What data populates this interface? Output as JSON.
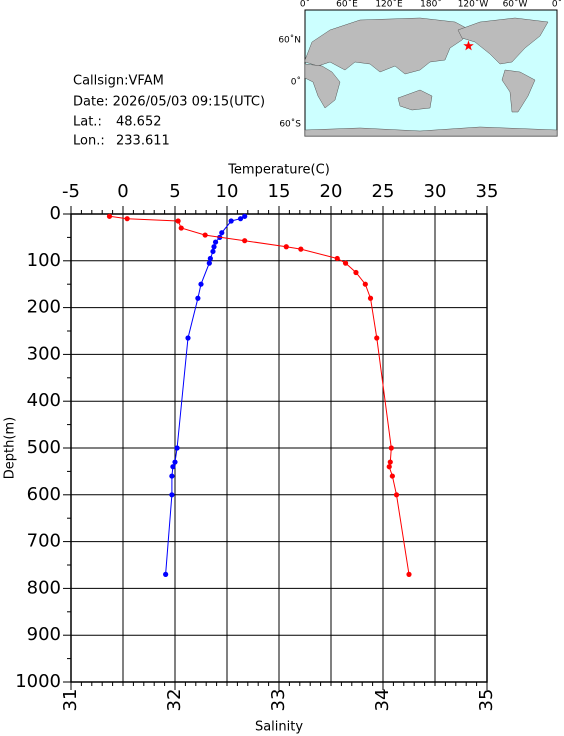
{
  "info": {
    "callsign": "Callsign:VFAM",
    "date": "Date:  2026/05/03 09:15(UTC)",
    "lat_label": "Lat.:",
    "lat": 48.652,
    "lon_label": "Lon.:",
    "lon": 233.611
  },
  "map": {
    "lon_labels": [
      "0˚",
      "60˚E",
      "120˚E",
      "180˚",
      "120˚W",
      "60˚W",
      "0˚"
    ],
    "lat_labels": [
      "60˚N",
      "0˚",
      "60˚S"
    ]
  },
  "chart_data": {
    "type": "profile",
    "xlabel": "Temperature(C)",
    "x2label": "Salinity",
    "ylabel": "Depth(m)",
    "xlim": [
      -5,
      35
    ],
    "xticks": [
      -5,
      0,
      5,
      10,
      15,
      20,
      25,
      30,
      35
    ],
    "x2lim": [
      31,
      35
    ],
    "x2ticks": [
      31,
      32,
      33,
      34,
      35
    ],
    "ylim": [
      0,
      1000
    ],
    "yticks": [
      0,
      100,
      200,
      300,
      400,
      500,
      600,
      700,
      800,
      900,
      1000
    ],
    "inverted_y": true,
    "grid": true,
    "series": [
      {
        "color": "#0000ff",
        "axis": "x",
        "depth": [
          5,
          10,
          15,
          40,
          50,
          60,
          70,
          80,
          95,
          105,
          150,
          180,
          265,
          500,
          530,
          540,
          560,
          600,
          770
        ],
        "values": [
          11.7,
          11.3,
          10.4,
          9.5,
          9.3,
          8.9,
          8.75,
          8.65,
          8.4,
          8.3,
          7.5,
          7.2,
          6.25,
          5.2,
          5.0,
          4.8,
          4.7,
          4.7,
          4.1
        ]
      },
      {
        "color": "#ff0000",
        "axis": "x2",
        "depth": [
          5,
          10,
          15,
          30,
          45,
          57,
          70,
          75,
          95,
          105,
          125,
          150,
          180,
          265,
          500,
          530,
          540,
          560,
          600,
          770
        ],
        "values": [
          31.37,
          31.54,
          32.03,
          32.06,
          32.29,
          32.67,
          33.07,
          33.21,
          33.56,
          33.64,
          33.74,
          33.83,
          33.88,
          33.94,
          34.08,
          34.07,
          34.06,
          34.09,
          34.13,
          34.25
        ]
      }
    ]
  }
}
